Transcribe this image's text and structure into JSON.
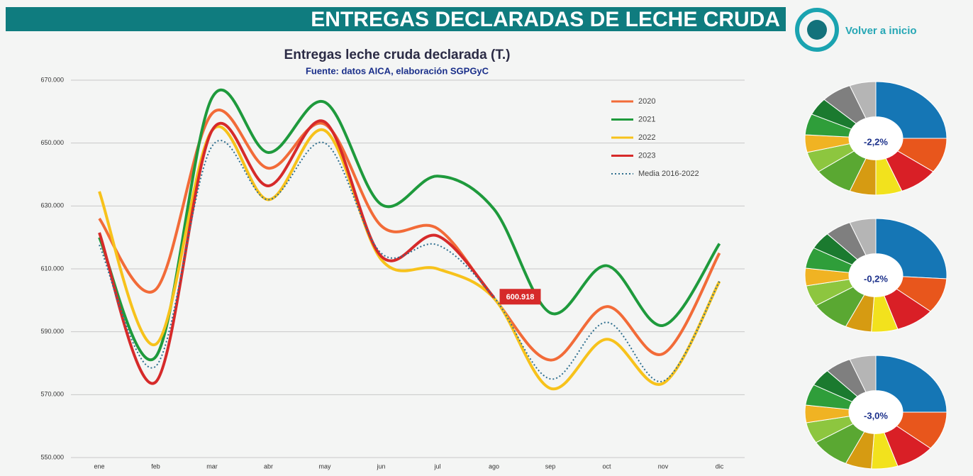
{
  "header": {
    "title": "ENTREGAS DECLARADAS DE LECHE CRUDA",
    "link": "Volver a inicio"
  },
  "chart_data": [
    {
      "type": "line",
      "title": "Entregas leche cruda declarada (T.)",
      "subtitle": "Fuente: datos AICA, elaboración SGPGyC",
      "categories": [
        "ene",
        "feb",
        "mar",
        "abr",
        "may",
        "jun",
        "jul",
        "ago",
        "sep",
        "oct",
        "nov",
        "dic"
      ],
      "ylim": [
        550000,
        670000
      ],
      "yticks": [
        {
          "value": 550000,
          "label": "550.000"
        },
        {
          "value": 570000,
          "label": "570.000"
        },
        {
          "value": 590000,
          "label": "590.000"
        },
        {
          "value": 610000,
          "label": "610.000"
        },
        {
          "value": 630000,
          "label": "630.000"
        },
        {
          "value": 650000,
          "label": "650.000"
        },
        {
          "value": 670000,
          "label": "670.000"
        }
      ],
      "grid": true,
      "legend": "upper right",
      "series": [
        {
          "name": "2020",
          "color": "#f26b38",
          "style": "solid",
          "values": [
            626000,
            603400,
            659400,
            642000,
            656000,
            623700,
            622800,
            600700,
            581000,
            598000,
            583000,
            615000
          ]
        },
        {
          "name": "2021",
          "color": "#1e9a3c",
          "style": "solid",
          "values": [
            620000,
            582000,
            664400,
            647000,
            663000,
            630500,
            639500,
            629000,
            596000,
            611000,
            592000,
            618000
          ]
        },
        {
          "name": "2022",
          "color": "#f7c21b",
          "style": "solid",
          "values": [
            634600,
            586000,
            654000,
            632000,
            654000,
            613000,
            610000,
            600700,
            572000,
            587600,
            573600,
            606000
          ]
        },
        {
          "name": "2023",
          "color": "#d62a2a",
          "style": "solid",
          "values": [
            621500,
            574000,
            654000,
            636400,
            656700,
            614000,
            620500,
            600918,
            null,
            null,
            null,
            null
          ],
          "value_labels": [
            null,
            null,
            null,
            null,
            null,
            null,
            null,
            "600.918",
            null,
            null,
            null,
            null
          ]
        },
        {
          "name": "Media 2016-2022",
          "color": "#2f6f8f",
          "style": "dotted",
          "values": [
            617600,
            579000,
            649000,
            632000,
            650000,
            615000,
            617600,
            601000,
            575000,
            593000,
            574300,
            606000
          ]
        }
      ]
    },
    {
      "type": "pie",
      "center_label": "-2,2%",
      "values": [
        25,
        10,
        9,
        6,
        6,
        9,
        6,
        5,
        6,
        5,
        7,
        6
      ],
      "colors": [
        "#1576b5",
        "#e8561c",
        "#d91f26",
        "#f2e21d",
        "#d69b12",
        "#5aa832",
        "#8dc63f",
        "#f0b323",
        "#2f9e3a",
        "#1b7a2f",
        "#7f7f7f",
        "#b5b5b5"
      ]
    },
    {
      "type": "pie",
      "center_label": "-0,2%",
      "values": [
        26,
        10,
        9,
        6,
        6,
        9,
        6,
        5,
        6,
        5,
        6,
        6
      ],
      "colors": [
        "#1576b5",
        "#e8561c",
        "#d91f26",
        "#f2e21d",
        "#d69b12",
        "#5aa832",
        "#8dc63f",
        "#f0b323",
        "#2f9e3a",
        "#1b7a2f",
        "#7f7f7f",
        "#b5b5b5"
      ]
    },
    {
      "type": "pie",
      "center_label": "-3,0%",
      "values": [
        25,
        11,
        9,
        6,
        6,
        9,
        6,
        5,
        6,
        5,
        6,
        6
      ],
      "colors": [
        "#1576b5",
        "#e8561c",
        "#d91f26",
        "#f2e21d",
        "#d69b12",
        "#5aa832",
        "#8dc63f",
        "#f0b323",
        "#2f9e3a",
        "#1b7a2f",
        "#7f7f7f",
        "#b5b5b5"
      ]
    }
  ]
}
